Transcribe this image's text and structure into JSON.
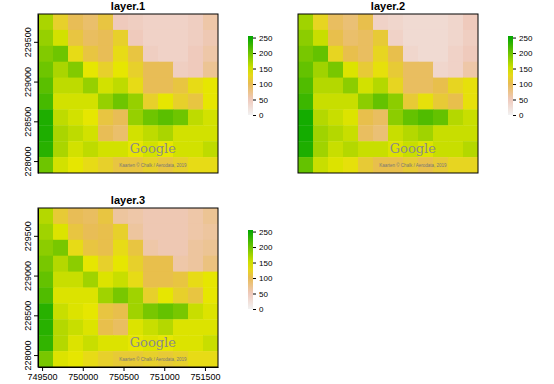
{
  "chart_data": [
    {
      "type": "heatmap",
      "title": "layer.1",
      "xlim": [
        749450,
        751660
      ],
      "ylim": [
        227850,
        229850
      ],
      "yticks": [
        228000,
        228500,
        229000,
        229500
      ],
      "tick_labels": "y",
      "color_range": [
        0,
        255
      ],
      "color_ticks": [
        0,
        50,
        100,
        150,
        200,
        250
      ],
      "annotations": [
        {
          "text": "Google",
          "x": 750860,
          "y": 228100
        },
        {
          "text": "Kaarten © Chalk / Aerodata, 2019",
          "x": 750860,
          "y": 227920
        }
      ],
      "cells": [
        [
          170,
          120,
          100,
          90,
          110,
          50,
          45,
          40,
          40,
          40,
          45,
          60
        ],
        [
          180,
          150,
          110,
          95,
          100,
          120,
          50,
          40,
          40,
          40,
          45,
          55
        ],
        [
          190,
          200,
          130,
          110,
          100,
          130,
          110,
          45,
          40,
          40,
          50,
          60
        ],
        [
          200,
          170,
          190,
          140,
          120,
          140,
          120,
          100,
          100,
          45,
          50,
          70
        ],
        [
          210,
          160,
          160,
          180,
          150,
          160,
          130,
          100,
          100,
          110,
          130,
          140
        ],
        [
          220,
          150,
          150,
          150,
          180,
          200,
          180,
          120,
          140,
          120,
          110,
          140
        ],
        [
          240,
          160,
          150,
          140,
          110,
          100,
          180,
          200,
          210,
          200,
          160,
          150
        ],
        [
          240,
          170,
          160,
          150,
          100,
          90,
          150,
          160,
          170,
          150,
          150,
          150
        ],
        [
          235,
          170,
          150,
          160,
          150,
          150,
          140,
          150,
          140,
          150,
          150,
          160
        ],
        [
          200,
          150,
          140,
          130,
          120,
          110,
          110,
          120,
          110,
          120,
          130,
          130
        ]
      ]
    },
    {
      "type": "heatmap",
      "title": "layer.2",
      "xlim": [
        749450,
        751660
      ],
      "ylim": [
        227850,
        229850
      ],
      "tick_labels": false,
      "color_range": [
        0,
        255
      ],
      "color_ticks": [
        0,
        50,
        100,
        150,
        200,
        250
      ],
      "annotations": [
        {
          "text": "Google",
          "x": 750860,
          "y": 228100
        },
        {
          "text": "Kaarten © Chalk / Aerodata, 2019",
          "x": 750860,
          "y": 227920
        }
      ],
      "cells": [
        [
          175,
          125,
          95,
          85,
          105,
          40,
          35,
          30,
          30,
          30,
          35,
          50
        ],
        [
          185,
          155,
          105,
          90,
          95,
          115,
          40,
          30,
          30,
          30,
          35,
          45
        ],
        [
          195,
          205,
          125,
          105,
          95,
          125,
          105,
          35,
          30,
          30,
          40,
          50
        ],
        [
          205,
          175,
          195,
          145,
          115,
          135,
          115,
          95,
          95,
          35,
          40,
          60
        ],
        [
          215,
          165,
          165,
          185,
          150,
          165,
          125,
          95,
          95,
          105,
          125,
          135
        ],
        [
          225,
          155,
          155,
          155,
          185,
          205,
          185,
          115,
          135,
          115,
          105,
          135
        ],
        [
          245,
          165,
          155,
          145,
          105,
          95,
          185,
          205,
          215,
          205,
          165,
          155
        ],
        [
          245,
          175,
          165,
          155,
          95,
          85,
          155,
          165,
          175,
          155,
          155,
          155
        ],
        [
          240,
          175,
          155,
          165,
          155,
          155,
          145,
          155,
          145,
          155,
          155,
          165
        ],
        [
          205,
          155,
          145,
          135,
          115,
          105,
          105,
          115,
          105,
          115,
          125,
          125
        ]
      ]
    },
    {
      "type": "heatmap",
      "title": "layer.3",
      "xlim": [
        749450,
        751660
      ],
      "ylim": [
        227850,
        229850
      ],
      "xticks": [
        749500,
        750000,
        750500,
        751000,
        751500
      ],
      "yticks": [
        228000,
        228500,
        229000,
        229500
      ],
      "tick_labels": true,
      "color_range": [
        0,
        255
      ],
      "color_ticks": [
        0,
        50,
        100,
        150,
        200,
        250
      ],
      "annotations": [
        {
          "text": "Google",
          "x": 750860,
          "y": 228100
        },
        {
          "text": "Kaarten © Chalk / Aerodata, 2019",
          "x": 750860,
          "y": 227920
        }
      ],
      "cells": [
        [
          165,
          115,
          100,
          95,
          110,
          65,
          60,
          55,
          55,
          55,
          60,
          70
        ],
        [
          175,
          145,
          110,
          100,
          105,
          120,
          65,
          55,
          55,
          55,
          60,
          65
        ],
        [
          185,
          195,
          130,
          110,
          105,
          130,
          110,
          60,
          55,
          55,
          65,
          70
        ],
        [
          195,
          165,
          185,
          140,
          120,
          140,
          120,
          105,
          105,
          60,
          65,
          80
        ],
        [
          205,
          155,
          155,
          175,
          145,
          155,
          130,
          105,
          105,
          110,
          130,
          140
        ],
        [
          215,
          145,
          145,
          145,
          175,
          195,
          175,
          120,
          140,
          120,
          110,
          140
        ],
        [
          235,
          155,
          145,
          140,
          110,
          105,
          175,
          195,
          205,
          195,
          155,
          145
        ],
        [
          235,
          165,
          155,
          145,
          105,
          95,
          145,
          155,
          165,
          145,
          145,
          145
        ],
        [
          230,
          165,
          145,
          155,
          145,
          145,
          140,
          145,
          140,
          145,
          145,
          155
        ],
        [
          195,
          145,
          140,
          130,
          120,
          115,
          115,
          120,
          115,
          120,
          130,
          130
        ]
      ]
    }
  ]
}
